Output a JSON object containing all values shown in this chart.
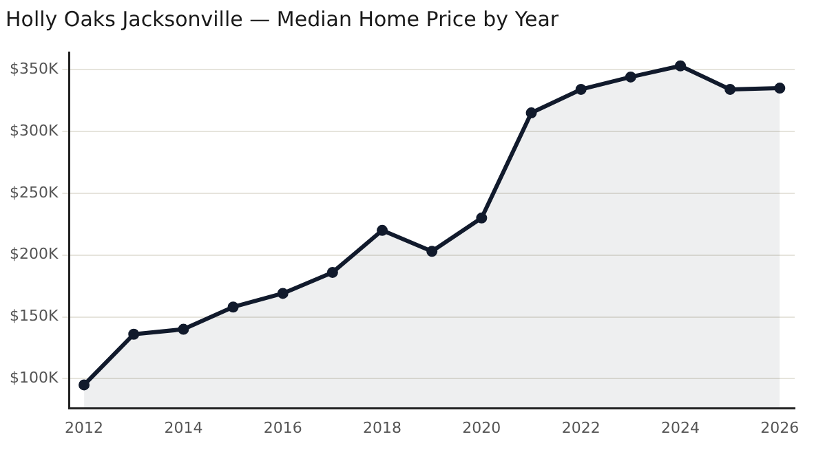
{
  "chart_data": {
    "type": "area",
    "title": "Holly Oaks Jacksonville — Median Home Price by Year",
    "x": [
      2012,
      2013,
      2014,
      2015,
      2016,
      2017,
      2018,
      2019,
      2020,
      2021,
      2022,
      2023,
      2024,
      2025,
      2026
    ],
    "series": [
      {
        "color": "#111a2c",
        "values": [
          95,
          136,
          140,
          158,
          169,
          186,
          220,
          203,
          230,
          315,
          334,
          344,
          353,
          334,
          335
        ]
      }
    ],
    "xlim": [
      2011.7,
      2026.3
    ],
    "xticks": [
      2012,
      2014,
      2016,
      2018,
      2020,
      2022,
      2024,
      2026
    ],
    "ylim": [
      76,
      364
    ],
    "yticks": [
      {
        "value": 100,
        "label": "$100K"
      },
      {
        "value": 150,
        "label": "$150K"
      },
      {
        "value": 200,
        "label": "$200K"
      },
      {
        "value": 250,
        "label": "$250K"
      },
      {
        "value": 300,
        "label": "$300K"
      },
      {
        "value": 350,
        "label": "$350K"
      }
    ],
    "grid": "y",
    "marker": "circle",
    "line_style": "solid",
    "legend": false
  }
}
